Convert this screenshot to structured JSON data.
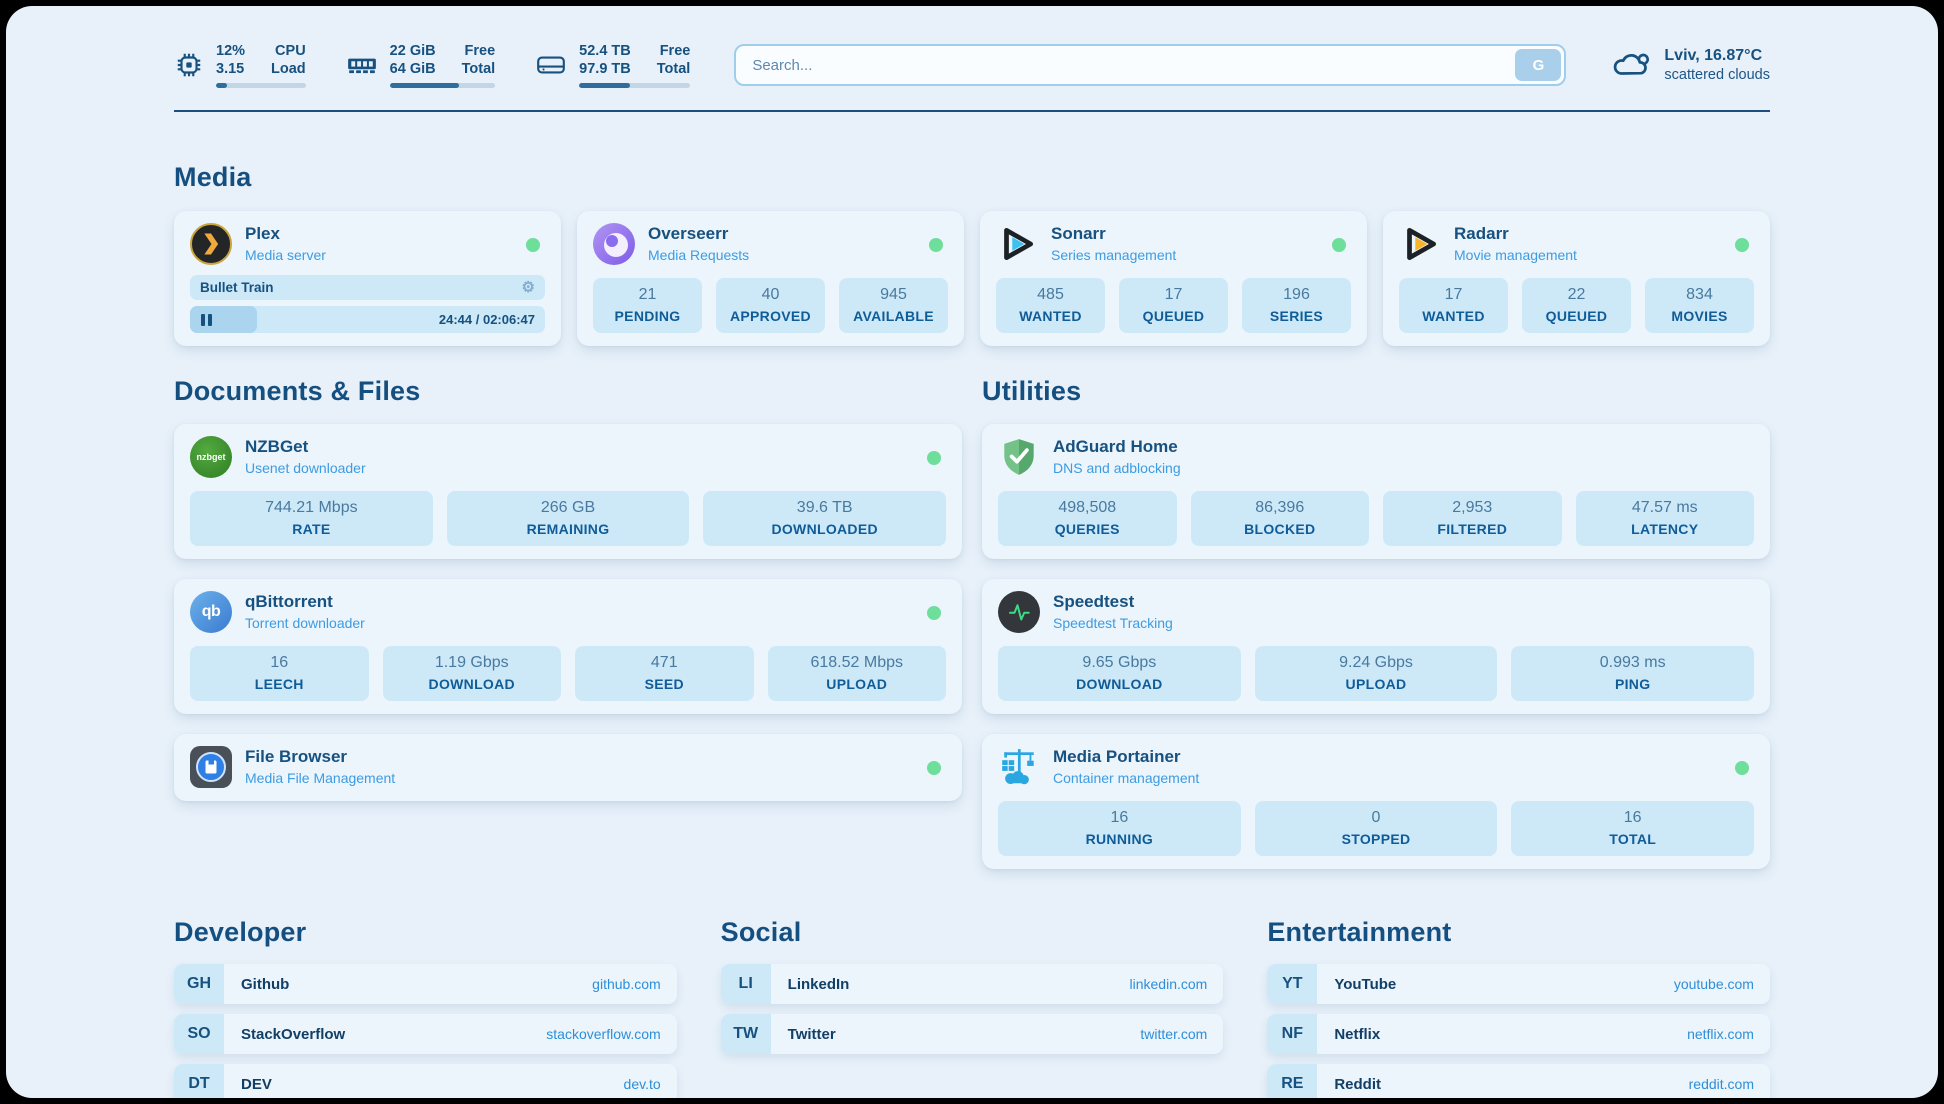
{
  "header": {
    "system_widgets": [
      {
        "icon": "cpu-icon",
        "col1_top": "12%",
        "col1_bottom": "3.15",
        "col2_top": "CPU",
        "col2_bottom": "Load",
        "progress_pct": 12
      },
      {
        "icon": "ram-icon",
        "col1_top": "22 GiB",
        "col1_bottom": "64 GiB",
        "col2_top": "Free",
        "col2_bottom": "Total",
        "progress_pct": 66
      },
      {
        "icon": "disk-icon",
        "col1_top": "52.4 TB",
        "col1_bottom": "97.9 TB",
        "col2_top": "Free",
        "col2_bottom": "Total",
        "progress_pct": 46
      }
    ],
    "search": {
      "placeholder": "Search...",
      "provider_label": "G"
    },
    "weather": {
      "summary": "Lviv, 16.87°C",
      "condition": "scattered clouds"
    }
  },
  "colors": {
    "page_bg": "#e8f1fa",
    "card_bg": "#ecf4fc",
    "stat_bg": "#cde9f8",
    "navy": "#17517f",
    "accent_blue": "#3d9ce2",
    "link_blue": "#2d8fd9",
    "green_dot": "#6ede9b",
    "bar_fill": "#2e6e9e"
  },
  "sections": {
    "media": {
      "title": "Media",
      "apps": [
        {
          "name": "Plex",
          "description": "Media server",
          "online": true,
          "player": {
            "track_title": "Bullet Train",
            "time": "24:44 / 02:06:47",
            "progress_pct": 19
          }
        },
        {
          "name": "Overseerr",
          "description": "Media Requests",
          "online": true,
          "stats": [
            {
              "value": "21",
              "label": "PENDING"
            },
            {
              "value": "40",
              "label": "APPROVED"
            },
            {
              "value": "945",
              "label": "AVAILABLE"
            }
          ]
        },
        {
          "name": "Sonarr",
          "description": "Series management",
          "online": true,
          "stats": [
            {
              "value": "485",
              "label": "WANTED"
            },
            {
              "value": "17",
              "label": "QUEUED"
            },
            {
              "value": "196",
              "label": "SERIES"
            }
          ]
        },
        {
          "name": "Radarr",
          "description": "Movie management",
          "online": true,
          "stats": [
            {
              "value": "17",
              "label": "WANTED"
            },
            {
              "value": "22",
              "label": "QUEUED"
            },
            {
              "value": "834",
              "label": "MOVIES"
            }
          ]
        }
      ]
    },
    "documents": {
      "title": "Documents & Files",
      "apps": [
        {
          "name": "NZBGet",
          "description": "Usenet downloader",
          "online": true,
          "icon_text": "nzbget",
          "stats": [
            {
              "value": "744.21 Mbps",
              "label": "RATE"
            },
            {
              "value": "266 GB",
              "label": "REMAINING"
            },
            {
              "value": "39.6 TB",
              "label": "DOWNLOADED"
            }
          ]
        },
        {
          "name": "qBittorrent",
          "description": "Torrent downloader",
          "online": true,
          "icon_text": "qb",
          "stats": [
            {
              "value": "16",
              "label": "LEECH"
            },
            {
              "value": "1.19 Gbps",
              "label": "DOWNLOAD"
            },
            {
              "value": "471",
              "label": "SEED"
            },
            {
              "value": "618.52 Mbps",
              "label": "UPLOAD"
            }
          ]
        },
        {
          "name": "File Browser",
          "description": "Media File Management",
          "online": true
        }
      ]
    },
    "utilities": {
      "title": "Utilities",
      "apps": [
        {
          "name": "AdGuard Home",
          "description": "DNS and adblocking",
          "online": false,
          "stats": [
            {
              "value": "498,508",
              "label": "QUERIES"
            },
            {
              "value": "86,396",
              "label": "BLOCKED"
            },
            {
              "value": "2,953",
              "label": "FILTERED"
            },
            {
              "value": "47.57 ms",
              "label": "LATENCY"
            }
          ]
        },
        {
          "name": "Speedtest",
          "description": "Speedtest Tracking",
          "online": false,
          "stats": [
            {
              "value": "9.65 Gbps",
              "label": "DOWNLOAD"
            },
            {
              "value": "9.24 Gbps",
              "label": "UPLOAD"
            },
            {
              "value": "0.993 ms",
              "label": "PING"
            }
          ]
        },
        {
          "name": "Media Portainer",
          "description": "Container management",
          "online": true,
          "stats": [
            {
              "value": "16",
              "label": "RUNNING"
            },
            {
              "value": "0",
              "label": "STOPPED"
            },
            {
              "value": "16",
              "label": "TOTAL"
            }
          ]
        }
      ]
    },
    "bookmarks": [
      {
        "title": "Developer",
        "links": [
          {
            "abbr": "GH",
            "name": "Github",
            "url": "github.com"
          },
          {
            "abbr": "SO",
            "name": "StackOverflow",
            "url": "stackoverflow.com"
          },
          {
            "abbr": "DT",
            "name": "DEV",
            "url": "dev.to"
          }
        ]
      },
      {
        "title": "Social",
        "links": [
          {
            "abbr": "LI",
            "name": "LinkedIn",
            "url": "linkedin.com"
          },
          {
            "abbr": "TW",
            "name": "Twitter",
            "url": "twitter.com"
          }
        ]
      },
      {
        "title": "Entertainment",
        "links": [
          {
            "abbr": "YT",
            "name": "YouTube",
            "url": "youtube.com"
          },
          {
            "abbr": "NF",
            "name": "Netflix",
            "url": "netflix.com"
          },
          {
            "abbr": "RE",
            "name": "Reddit",
            "url": "reddit.com"
          }
        ]
      }
    ]
  }
}
